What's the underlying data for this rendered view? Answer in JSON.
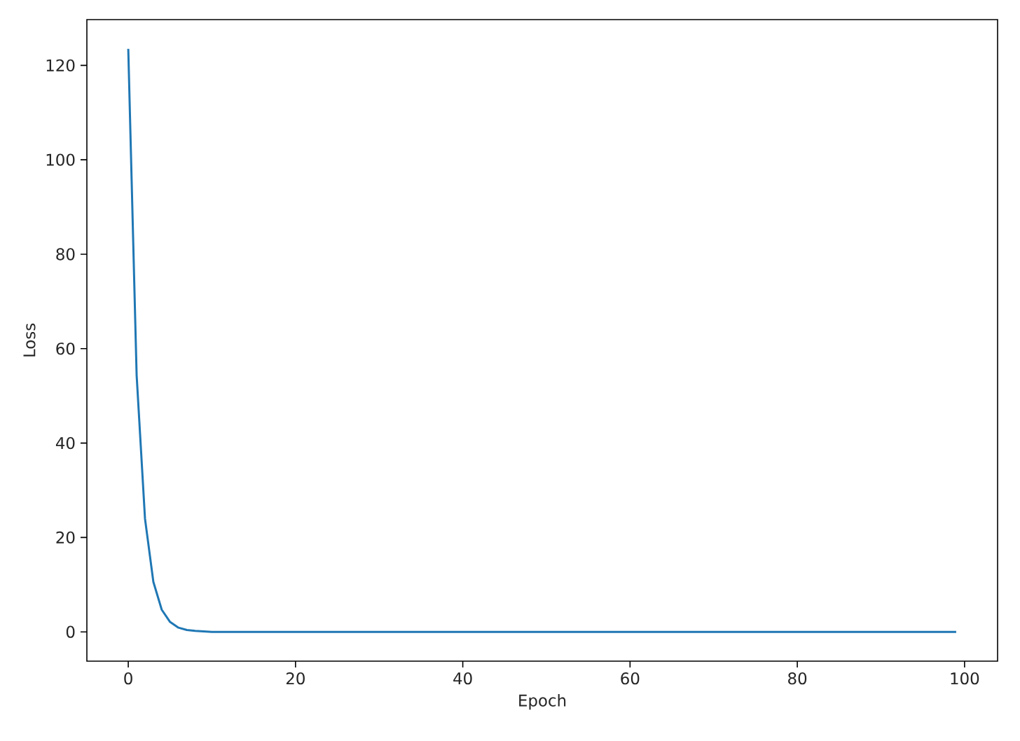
{
  "chart_data": {
    "type": "line",
    "xlabel": "Epoch",
    "ylabel": "Loss",
    "x": [
      0,
      1,
      2,
      3,
      4,
      5,
      6,
      7,
      8,
      9,
      10,
      11,
      12,
      13,
      14,
      15,
      16,
      17,
      18,
      19,
      20,
      21,
      22,
      23,
      24,
      25,
      26,
      27,
      28,
      29,
      30,
      31,
      32,
      33,
      34,
      35,
      36,
      37,
      38,
      39,
      40,
      41,
      42,
      43,
      44,
      45,
      46,
      47,
      48,
      49,
      50,
      51,
      52,
      53,
      54,
      55,
      56,
      57,
      58,
      59,
      60,
      61,
      62,
      63,
      64,
      65,
      66,
      67,
      68,
      69,
      70,
      71,
      72,
      73,
      74,
      75,
      76,
      77,
      78,
      79,
      80,
      81,
      82,
      83,
      84,
      85,
      86,
      87,
      88,
      89,
      90,
      91,
      92,
      93,
      94,
      95,
      96,
      97,
      98,
      99
    ],
    "values": [
      123.5,
      54.4,
      24.0,
      10.6,
      4.7,
      2.1,
      0.9,
      0.4,
      0.2,
      0.1,
      0,
      0,
      0,
      0,
      0,
      0,
      0,
      0,
      0,
      0,
      0,
      0,
      0,
      0,
      0,
      0,
      0,
      0,
      0,
      0,
      0,
      0,
      0,
      0,
      0,
      0,
      0,
      0,
      0,
      0,
      0,
      0,
      0,
      0,
      0,
      0,
      0,
      0,
      0,
      0,
      0,
      0,
      0,
      0,
      0,
      0,
      0,
      0,
      0,
      0,
      0,
      0,
      0,
      0,
      0,
      0,
      0,
      0,
      0,
      0,
      0,
      0,
      0,
      0,
      0,
      0,
      0,
      0,
      0,
      0,
      0,
      0,
      0,
      0,
      0,
      0,
      0,
      0,
      0,
      0,
      0,
      0,
      0,
      0,
      0,
      0,
      0,
      0,
      0,
      0
    ],
    "color": "#1f77b4",
    "xlim": [
      -4.95,
      103.95
    ],
    "ylim": [
      -6.2,
      129.7
    ],
    "xticks": [
      0,
      20,
      40,
      60,
      80,
      100
    ],
    "yticks": [
      0,
      20,
      40,
      60,
      80,
      100,
      120
    ]
  }
}
